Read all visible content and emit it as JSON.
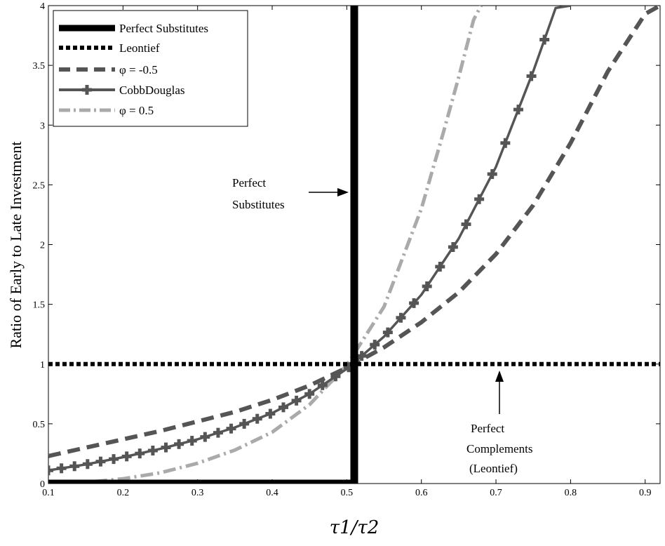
{
  "chart_data": {
    "type": "line",
    "title": "",
    "xlabel": "τ1/τ2",
    "ylabel": "Ratio of Early to Late Investment",
    "xlim": [
      0.1,
      0.92
    ],
    "ylim": [
      0,
      4
    ],
    "xticks": [
      "0.1",
      "0.2",
      "0.3",
      "0.4",
      "0.5",
      "0.6",
      "0.7",
      "0.8",
      "0.9"
    ],
    "yticks": [
      "0",
      "0.5",
      "1",
      "1.5",
      "2",
      "2.5",
      "3",
      "3.5",
      "4"
    ],
    "grid": false,
    "legend_position": "top-left",
    "series": [
      {
        "name": "Perfect Substitutes",
        "style": "solid-thick",
        "color": "#000000",
        "x": [
          0.1,
          0.51,
          0.51
        ],
        "y": [
          0,
          0,
          4
        ]
      },
      {
        "name": "Leontief",
        "style": "dotted",
        "color": "#000000",
        "x": [
          0.1,
          0.92
        ],
        "y": [
          1,
          1
        ]
      },
      {
        "name": "φ = -0.5",
        "style": "dashed",
        "color": "#555555",
        "x": [
          0.1,
          0.15,
          0.2,
          0.25,
          0.3,
          0.35,
          0.4,
          0.45,
          0.5,
          0.55,
          0.6,
          0.65,
          0.7,
          0.75,
          0.8,
          0.85,
          0.9,
          0.92
        ],
        "y": [
          0.23,
          0.3,
          0.37,
          0.44,
          0.52,
          0.6,
          0.7,
          0.82,
          0.97,
          1.14,
          1.35,
          1.6,
          1.92,
          2.33,
          2.85,
          3.45,
          3.93,
          4.0
        ]
      },
      {
        "name": "CobbDouglas",
        "style": "solid-plus-markers",
        "color": "#555555",
        "x": [
          0.1,
          0.15,
          0.2,
          0.25,
          0.3,
          0.35,
          0.4,
          0.45,
          0.5,
          0.55,
          0.6,
          0.65,
          0.7,
          0.75,
          0.78,
          0.8
        ],
        "y": [
          0.11,
          0.16,
          0.22,
          0.29,
          0.37,
          0.47,
          0.59,
          0.75,
          0.96,
          1.23,
          1.58,
          2.05,
          2.65,
          3.45,
          3.98,
          4.0
        ]
      },
      {
        "name": "φ = 0.5",
        "style": "dash-dot",
        "color": "#aaaaaa",
        "x": [
          0.1,
          0.15,
          0.2,
          0.25,
          0.3,
          0.35,
          0.4,
          0.45,
          0.5,
          0.55,
          0.6,
          0.63,
          0.65,
          0.67,
          0.68
        ],
        "y": [
          0.0,
          0.01,
          0.04,
          0.09,
          0.17,
          0.28,
          0.43,
          0.66,
          0.99,
          1.48,
          2.3,
          2.95,
          3.4,
          3.88,
          4.0
        ]
      }
    ],
    "annotations": [
      {
        "lines": [
          "Perfect",
          "Substitutes"
        ]
      },
      {
        "lines": [
          "Perfect",
          "Complements",
          "(Leontief)"
        ]
      }
    ]
  }
}
